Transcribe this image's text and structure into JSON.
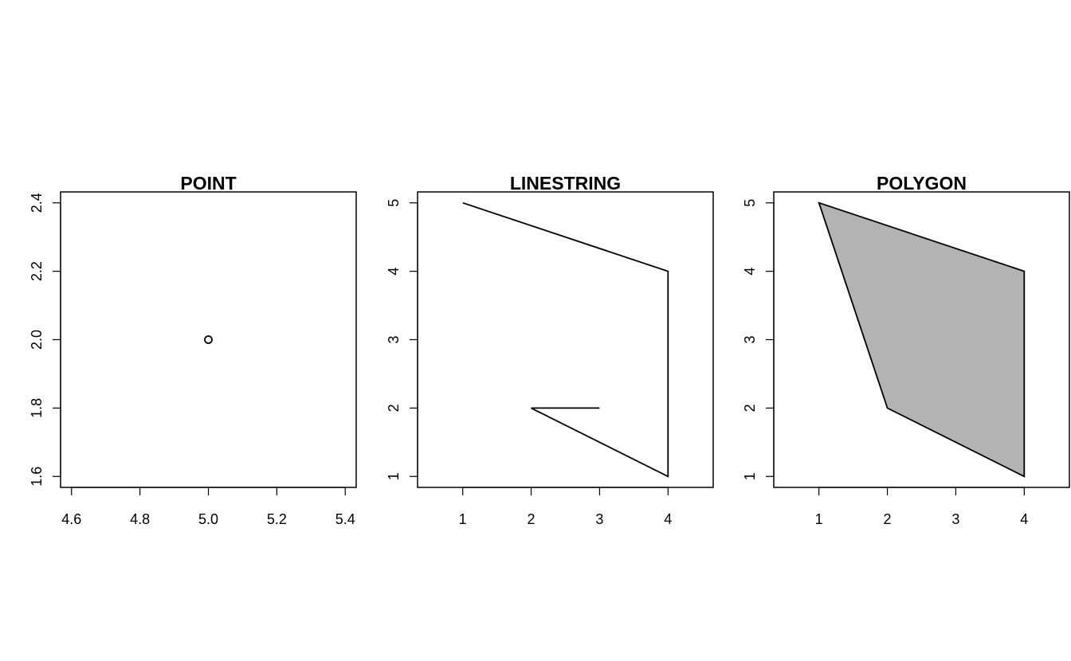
{
  "chart_data": [
    {
      "type": "scatter",
      "title": "POINT",
      "geometry": "point",
      "x": [
        5.0
      ],
      "y": [
        2.0
      ],
      "xlim": [
        4.568,
        5.432
      ],
      "ylim": [
        1.568,
        2.432
      ],
      "xticks": [
        4.6,
        4.8,
        5.0,
        5.2,
        5.4
      ],
      "yticks": [
        1.6,
        1.8,
        2.0,
        2.2,
        2.4
      ],
      "xlabel": "",
      "ylabel": "",
      "grid": false
    },
    {
      "type": "line",
      "title": "LINESTRING",
      "geometry": "linestring",
      "x": [
        1,
        4,
        4,
        2,
        3
      ],
      "y": [
        5,
        4,
        1,
        2,
        2
      ],
      "xlim": [
        0.34,
        4.66
      ],
      "ylim": [
        0.84,
        5.16
      ],
      "xticks": [
        1,
        2,
        3,
        4
      ],
      "yticks": [
        1,
        2,
        3,
        4,
        5
      ],
      "xlabel": "",
      "ylabel": "",
      "grid": false
    },
    {
      "type": "area",
      "title": "POLYGON",
      "geometry": "polygon",
      "x": [
        1,
        4,
        4,
        2,
        1
      ],
      "y": [
        5,
        4,
        1,
        2,
        5
      ],
      "xlim": [
        0.34,
        4.66
      ],
      "ylim": [
        0.84,
        5.16
      ],
      "xticks": [
        1,
        2,
        3,
        4
      ],
      "yticks": [
        1,
        2,
        3,
        4,
        5
      ],
      "fill_color": "#b3b3b3",
      "xlabel": "",
      "ylabel": "",
      "grid": false
    }
  ]
}
